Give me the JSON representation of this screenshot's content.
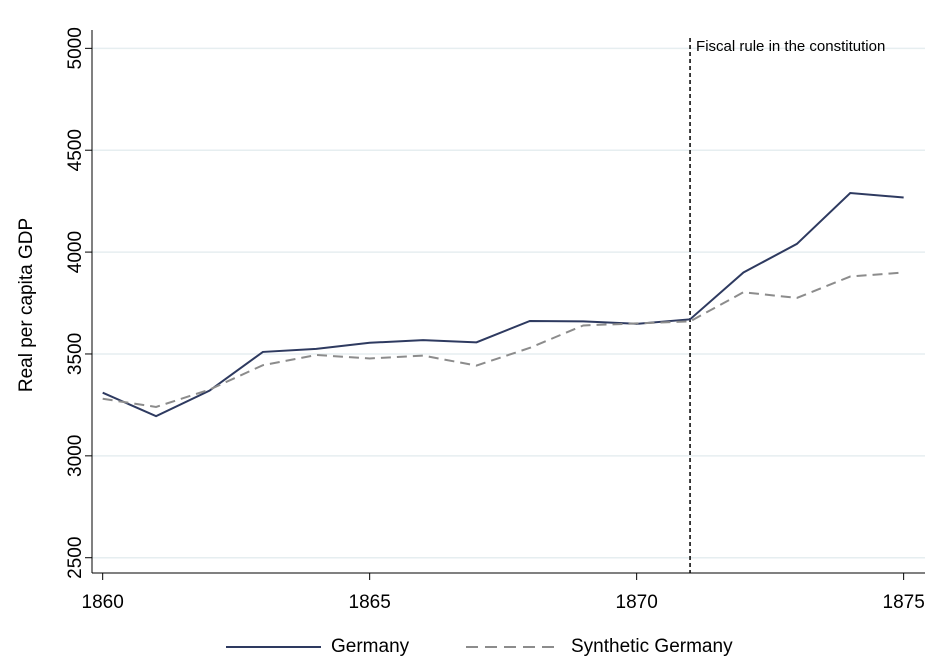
{
  "chart_data": {
    "type": "line",
    "y_label": "Real per capita GDP",
    "x": [
      1860,
      1861,
      1862,
      1863,
      1864,
      1865,
      1866,
      1867,
      1868,
      1869,
      1870,
      1871,
      1872,
      1873,
      1874,
      1875
    ],
    "series": [
      {
        "name": "Germany",
        "color": "#2e3a60",
        "dash": false,
        "values": [
          3310,
          3195,
          3320,
          3510,
          3525,
          3555,
          3568,
          3557,
          3662,
          3660,
          3648,
          3670,
          3900,
          4040,
          4290,
          4268
        ]
      },
      {
        "name": "Synthetic Germany",
        "color": "#8c8c8c",
        "dash": true,
        "values": [
          3280,
          3240,
          3325,
          3445,
          3495,
          3478,
          3492,
          3443,
          3530,
          3640,
          3650,
          3660,
          3803,
          3775,
          3880,
          3900
        ]
      }
    ],
    "xlim": [
      1859.8,
      1875.4
    ],
    "xticks": [
      1860,
      1865,
      1870,
      1875
    ],
    "ylim": [
      2425,
      5090
    ],
    "yticks": [
      2500,
      3000,
      3500,
      4000,
      4500,
      5000
    ],
    "grid": true,
    "vline": {
      "x": 1871,
      "label": "Fiscal rule in the constitution"
    },
    "legend": "bottom"
  }
}
